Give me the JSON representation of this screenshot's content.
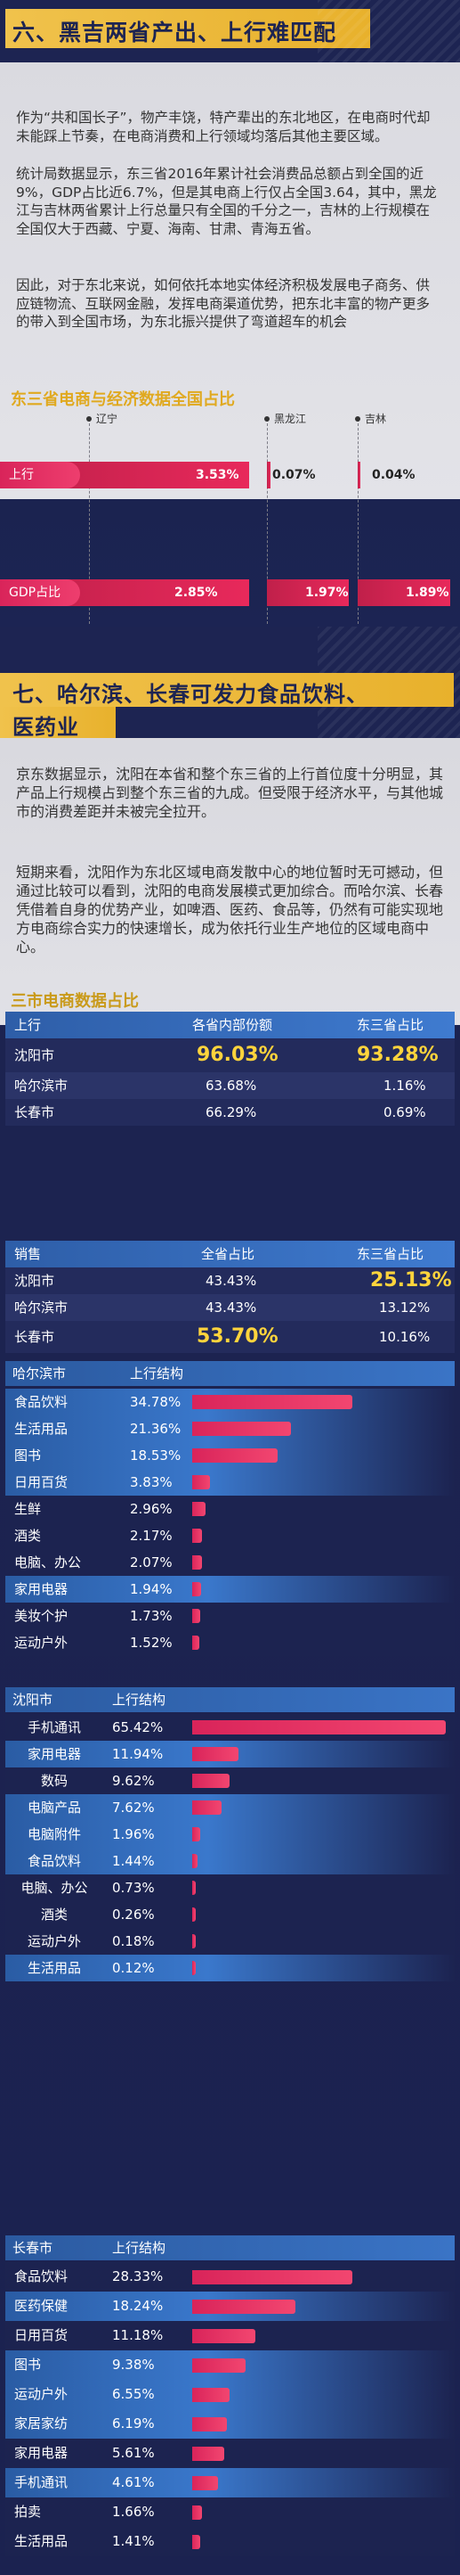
{
  "section6": {
    "title": "六、黑吉两省产出、上行难匹配",
    "para1": "作为“共和国长子”，物产丰饶，特产辈出的东北地区，在电商时代却未能踩上节奏，在电商消费和上行领域均落后其他主要区域。",
    "para2": "统计局数据显示，东三省2016年累计社会消费品总额占到全国的近9%，GDP占比近6.7%，但是其电商上行仅占全国3.64，其中，黑龙江与吉林两省累计上行总量只有全国的千分之一，吉林的上行规模在全国仅大于西藏、宁夏、海南、甘肃、青海五省。",
    "para3": "因此，对于东北来说，如何依托本地实体经济积极发展电子商务、供应链物流、互联网金融，发挥电商渠道优势，把东北丰富的物产更多的带入到全国市场，为东北振兴提供了弯道超车的机会",
    "chart_title": "东三省电商与经济数据全国占比"
  },
  "chart_data": {
    "type": "bar",
    "title": "东三省电商与经济数据全国占比",
    "categories": [
      "上行",
      "GDP占比"
    ],
    "series": [
      {
        "name": "辽宁",
        "values": [
          3.53,
          2.85
        ]
      },
      {
        "name": "黑龙江",
        "values": [
          0.07,
          1.97
        ]
      },
      {
        "name": "吉林",
        "values": [
          0.04,
          1.89
        ]
      }
    ],
    "labels": {
      "row1": "上行",
      "row2": "GDP占比"
    },
    "value_text": {
      "ln_up": "3.53%",
      "hlj_up": "0.07%",
      "jl_up": "0.04%",
      "ln_gdp": "2.85%",
      "hlj_gdp": "1.97%",
      "jl_gdp": "1.89%"
    }
  },
  "section7": {
    "title_line1": "七、哈尔滨、长春可发力食品饮料、",
    "title_line2": "医药业",
    "para1": "京东数据显示，沈阳在本省和整个东三省的上行首位度十分明显，其产品上行规模占到整个东三省的九成。但受限于经济水平，与其他城市的消费差距并未被完全拉开。",
    "para2": "短期来看，沈阳作为东北区域电商发散中心的地位暂时无可撼动，但通过比较可以看到，沈阳的电商发展模式更加综合。而哈尔滨、长春凭借着自身的优势产业，如啤酒、医药、食品等，仍然有可能实现地方电商综合实力的快速增长，成为依托行业生产地位的区域电商中心。",
    "table_title": "三市电商数据占比"
  },
  "upstream_table": {
    "headers": [
      "上行",
      "各省内部份额",
      "东三省占比"
    ],
    "rows": [
      {
        "city": "沈阳市",
        "a": "96.03%",
        "b": "93.28%"
      },
      {
        "city": "哈尔滨市",
        "a": "63.68%",
        "b": "1.16%"
      },
      {
        "city": "长春市",
        "a": "66.29%",
        "b": "0.69%"
      }
    ]
  },
  "sales_table": {
    "headers": [
      "销售",
      "全省占比",
      "东三省占比"
    ],
    "rows": [
      {
        "city": "沈阳市",
        "a": "43.43%",
        "b": "25.13%"
      },
      {
        "city": "哈尔滨市",
        "a": "43.43%",
        "b": "13.12%"
      },
      {
        "city": "长春市",
        "a": "53.70%",
        "b": "10.16%"
      }
    ]
  },
  "harbin": {
    "city": "哈尔滨市",
    "col": "上行结构",
    "rows": [
      {
        "name": "食品饮料",
        "pct": "34.78%",
        "v": 34.78
      },
      {
        "name": "生活用品",
        "pct": "21.36%",
        "v": 21.36
      },
      {
        "name": "图书",
        "pct": "18.53%",
        "v": 18.53
      },
      {
        "name": "日用百货",
        "pct": "3.83%",
        "v": 3.83
      },
      {
        "name": "生鲜",
        "pct": "2.96%",
        "v": 2.96
      },
      {
        "name": "酒类",
        "pct": "2.17%",
        "v": 2.17
      },
      {
        "name": "电脑、办公",
        "pct": "2.07%",
        "v": 2.07
      },
      {
        "name": "家用电器",
        "pct": "1.94%",
        "v": 1.94
      },
      {
        "name": "美妆个护",
        "pct": "1.73%",
        "v": 1.73
      },
      {
        "name": "运动户外",
        "pct": "1.52%",
        "v": 1.52
      }
    ]
  },
  "shenyang": {
    "city": "沈阳市",
    "col": "上行结构",
    "rows": [
      {
        "name": "手机通讯",
        "pct": "65.42%",
        "v": 65.42
      },
      {
        "name": "家用电器",
        "pct": "11.94%",
        "v": 11.94
      },
      {
        "name": "数码",
        "pct": "9.62%",
        "v": 9.62
      },
      {
        "name": "电脑产品",
        "pct": "7.62%",
        "v": 7.62
      },
      {
        "name": "电脑附件",
        "pct": "1.96%",
        "v": 1.96
      },
      {
        "name": "食品饮料",
        "pct": "1.44%",
        "v": 1.44
      },
      {
        "name": "电脑、办公",
        "pct": "0.73%",
        "v": 0.73
      },
      {
        "name": "酒类",
        "pct": "0.26%",
        "v": 0.26
      },
      {
        "name": "运动户外",
        "pct": "0.18%",
        "v": 0.18
      },
      {
        "name": "生活用品",
        "pct": "0.12%",
        "v": 0.12
      }
    ]
  },
  "changchun": {
    "city": "长春市",
    "col": "上行结构",
    "rows": [
      {
        "name": "食品饮料",
        "pct": "28.33%",
        "v": 28.33
      },
      {
        "name": "医药保健",
        "pct": "18.24%",
        "v": 18.24
      },
      {
        "name": "日用百货",
        "pct": "11.18%",
        "v": 11.18
      },
      {
        "name": "图书",
        "pct": "9.38%",
        "v": 9.38
      },
      {
        "name": "运动户外",
        "pct": "6.55%",
        "v": 6.55
      },
      {
        "name": "家居家纺",
        "pct": "6.19%",
        "v": 6.19
      },
      {
        "name": "家用电器",
        "pct": "5.61%",
        "v": 5.61
      },
      {
        "name": "手机通讯",
        "pct": "4.61%",
        "v": 4.61
      },
      {
        "name": "拍卖",
        "pct": "1.66%",
        "v": 1.66
      },
      {
        "name": "生活用品",
        "pct": "1.41%",
        "v": 1.41
      }
    ]
  }
}
